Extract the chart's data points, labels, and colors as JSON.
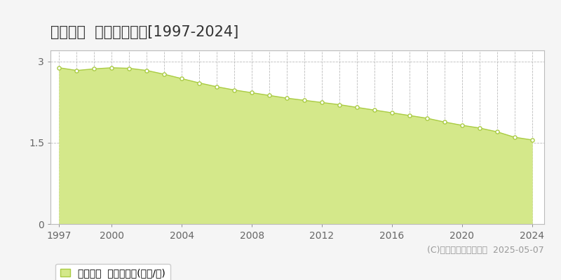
{
  "title": "日之影町  基準地価推移[1997-2024]",
  "years": [
    1997,
    1998,
    1999,
    2000,
    2001,
    2002,
    2003,
    2004,
    2005,
    2006,
    2007,
    2008,
    2009,
    2010,
    2011,
    2012,
    2013,
    2014,
    2015,
    2016,
    2017,
    2018,
    2019,
    2020,
    2021,
    2022,
    2023,
    2024
  ],
  "values": [
    2.88,
    2.83,
    2.86,
    2.88,
    2.87,
    2.83,
    2.76,
    2.68,
    2.6,
    2.53,
    2.47,
    2.42,
    2.37,
    2.32,
    2.28,
    2.24,
    2.2,
    2.15,
    2.1,
    2.05,
    2.0,
    1.95,
    1.88,
    1.82,
    1.77,
    1.7,
    1.6,
    1.55
  ],
  "line_color": "#aacc44",
  "fill_color": "#d4e88a",
  "marker_facecolor": "#ffffff",
  "marker_edgecolor": "#aacc44",
  "grid_color": "#bbbbbb",
  "background_color": "#f5f5f5",
  "plot_bg_color": "#ffffff",
  "ylim": [
    0,
    3.2
  ],
  "yticks": [
    0,
    1.5,
    3
  ],
  "xticks": [
    1997,
    2000,
    2004,
    2008,
    2012,
    2016,
    2020,
    2024
  ],
  "legend_label": "基準地価  平均坪単価(万円/坪)",
  "copyright": "(C)土地価格ドットコム  2025-05-07",
  "title_fontsize": 15,
  "tick_fontsize": 10,
  "legend_fontsize": 10,
  "copyright_fontsize": 9
}
